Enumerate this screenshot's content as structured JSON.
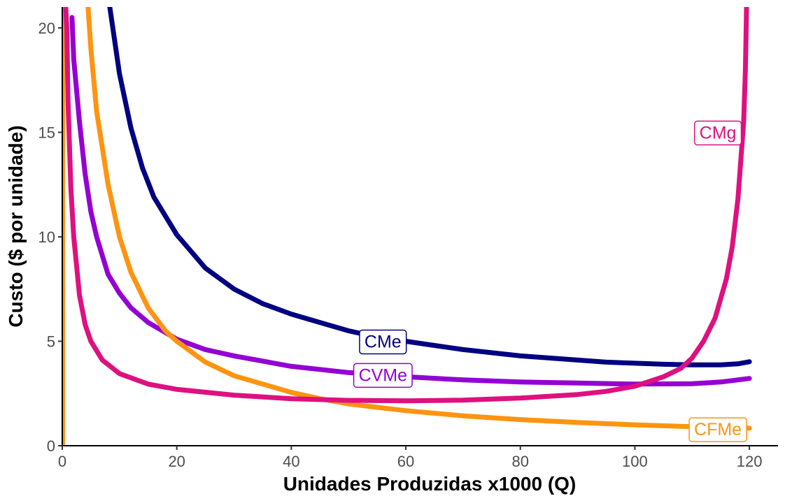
{
  "chart_data": {
    "type": "line",
    "title": "",
    "xlabel": "Unidades Produzidas x1000 (Q)",
    "ylabel": "Custo ($ por unidade)",
    "xlim": [
      0,
      125
    ],
    "ylim": [
      0,
      21
    ],
    "x_ticks": [
      0,
      20,
      40,
      60,
      80,
      100,
      120
    ],
    "y_ticks": [
      0,
      5,
      10,
      15,
      20
    ],
    "grid": false,
    "legend": "none (direct labels on curves)",
    "series": [
      {
        "name": "CMe",
        "color": "#000080",
        "x": [
          8.3,
          10,
          12,
          14,
          16,
          20,
          25,
          30,
          35,
          40,
          45,
          50,
          55,
          60,
          65,
          70,
          75,
          80,
          85,
          90,
          95,
          100,
          105,
          110,
          115,
          118,
          120
        ],
        "y": [
          21.0,
          17.8,
          15.2,
          13.3,
          11.9,
          10.1,
          8.5,
          7.5,
          6.8,
          6.3,
          5.9,
          5.5,
          5.2,
          5.0,
          4.8,
          4.6,
          4.45,
          4.3,
          4.2,
          4.1,
          4.0,
          3.95,
          3.9,
          3.87,
          3.87,
          3.92,
          4.02
        ],
        "label_position": [
          56.0,
          5.0
        ]
      },
      {
        "name": "CVMe",
        "color": "#9400d3",
        "x": [
          1.7,
          2,
          3,
          4,
          5,
          6,
          8,
          10,
          12,
          15,
          20,
          25,
          30,
          40,
          50,
          60,
          70,
          80,
          90,
          100,
          110,
          115,
          120
        ],
        "y": [
          20.5,
          18.5,
          15.5,
          13.0,
          11.2,
          10.0,
          8.2,
          7.3,
          6.6,
          5.9,
          5.1,
          4.6,
          4.3,
          3.8,
          3.5,
          3.3,
          3.15,
          3.05,
          3.0,
          2.95,
          2.97,
          3.05,
          3.22
        ],
        "label_position": [
          56.0,
          3.4
        ]
      },
      {
        "name": "CFMe",
        "color": "#ff9410",
        "x": [
          4.5,
          5,
          6,
          8,
          10,
          12,
          15,
          18,
          20,
          25,
          30,
          40,
          45,
          50,
          60,
          70,
          80,
          90,
          100,
          110,
          120
        ],
        "y": [
          21.0,
          19.0,
          16.0,
          12.5,
          10.0,
          8.3,
          6.6,
          5.5,
          5.0,
          4.0,
          3.35,
          2.55,
          2.25,
          2.0,
          1.68,
          1.43,
          1.25,
          1.11,
          1.0,
          0.91,
          0.84
        ],
        "label_position": [
          114.5,
          0.8
        ]
      },
      {
        "name": "CMg",
        "color": "#dd117f",
        "x": [
          0.6,
          0.8,
          1,
          1.5,
          2,
          3,
          4,
          5,
          7,
          10,
          15,
          20,
          30,
          40,
          50,
          60,
          70,
          80,
          90,
          95,
          100,
          105,
          108,
          110,
          112,
          114,
          116,
          117,
          118,
          119,
          119.3,
          119.5
        ],
        "y": [
          21.0,
          20.0,
          16.5,
          12.3,
          10.0,
          7.2,
          5.8,
          5.0,
          4.1,
          3.45,
          2.95,
          2.7,
          2.42,
          2.25,
          2.17,
          2.15,
          2.18,
          2.28,
          2.45,
          2.6,
          2.85,
          3.3,
          3.7,
          4.2,
          5.0,
          6.1,
          8.0,
          9.5,
          11.8,
          15.5,
          18.0,
          21.0
        ],
        "label_position": [
          114.5,
          15.0
        ]
      }
    ],
    "vertical_line": {
      "x": 0.3,
      "color": "#ff9410"
    }
  }
}
